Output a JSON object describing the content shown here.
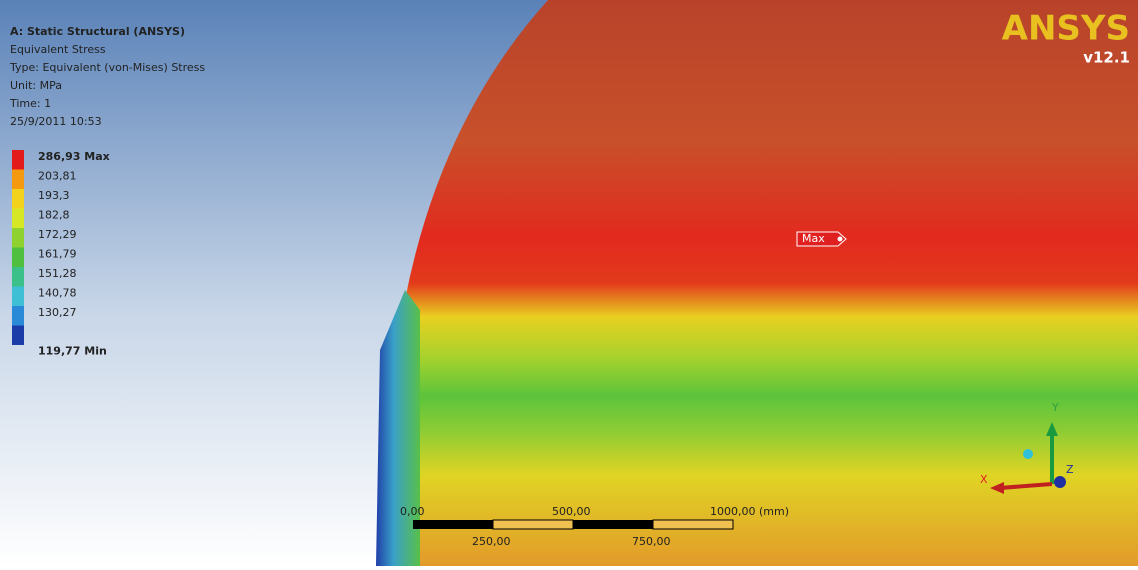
{
  "header": {
    "title": "A: Static Structural (ANSYS)",
    "lines": [
      "Equivalent Stress",
      "Type: Equivalent (von-Mises) Stress",
      "Unit: MPa",
      "Time: 1",
      "25/9/2011 10:53"
    ]
  },
  "legend": {
    "entries": [
      {
        "label": "286,93 Max",
        "color": "#e31a1a"
      },
      {
        "label": "203,81",
        "color": "#f59a10"
      },
      {
        "label": "193,3",
        "color": "#f2d21c"
      },
      {
        "label": "182,8",
        "color": "#d6e825"
      },
      {
        "label": "172,29",
        "color": "#8fd12e"
      },
      {
        "label": "161,79",
        "color": "#4fbf3f"
      },
      {
        "label": "151,28",
        "color": "#3cc08a"
      },
      {
        "label": "140,78",
        "color": "#3fbfd6"
      },
      {
        "label": "130,27",
        "color": "#2a8ad8"
      },
      {
        "label": "119,77 Min",
        "color": "#1b3ca8"
      }
    ]
  },
  "probe": {
    "label": "Max"
  },
  "logo": {
    "brand": "ANSYS",
    "version": "v12.1"
  },
  "scale_bar": {
    "top": [
      "0,00",
      "500,00",
      "1000,00 (mm)"
    ],
    "bottom": [
      "250,00",
      "750,00"
    ]
  },
  "triad": {
    "x": "X",
    "y": "Y",
    "z": "Z"
  }
}
